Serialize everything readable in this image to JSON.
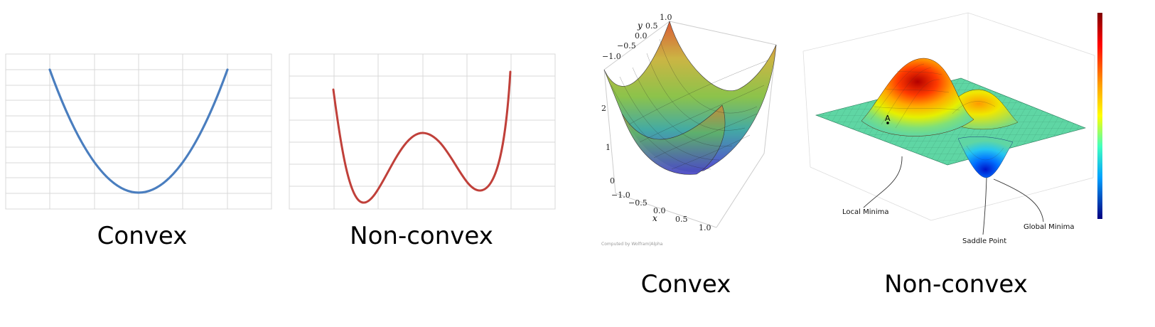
{
  "panels": {
    "convex_2d": {
      "label": "Convex",
      "color": "#4a7ebf",
      "grid_color": "#d9d9d9"
    },
    "nonconvex_2d": {
      "label": "Non-convex",
      "color": "#c0403a",
      "grid_color": "#d9d9d9"
    },
    "convex_3d": {
      "label": "Convex",
      "axis_y_letter": "y",
      "axis_x_letter": "x",
      "y_ticks": [
        "1.0",
        "0.5",
        "0.0",
        "−0.5",
        "−1.0"
      ],
      "z_ticks": [
        "2",
        "1",
        "0"
      ],
      "x_ticks": [
        "−1.0",
        "−0.5",
        "0.0",
        "0.5",
        "1.0"
      ],
      "credit": "Computed by Wolfram|Alpha"
    },
    "nonconvex_3d": {
      "label": "Non-convex",
      "point_label": "A",
      "annotations": {
        "local": "Local Minima",
        "saddle": "Saddle Point",
        "global": "Global Minima"
      }
    }
  }
}
